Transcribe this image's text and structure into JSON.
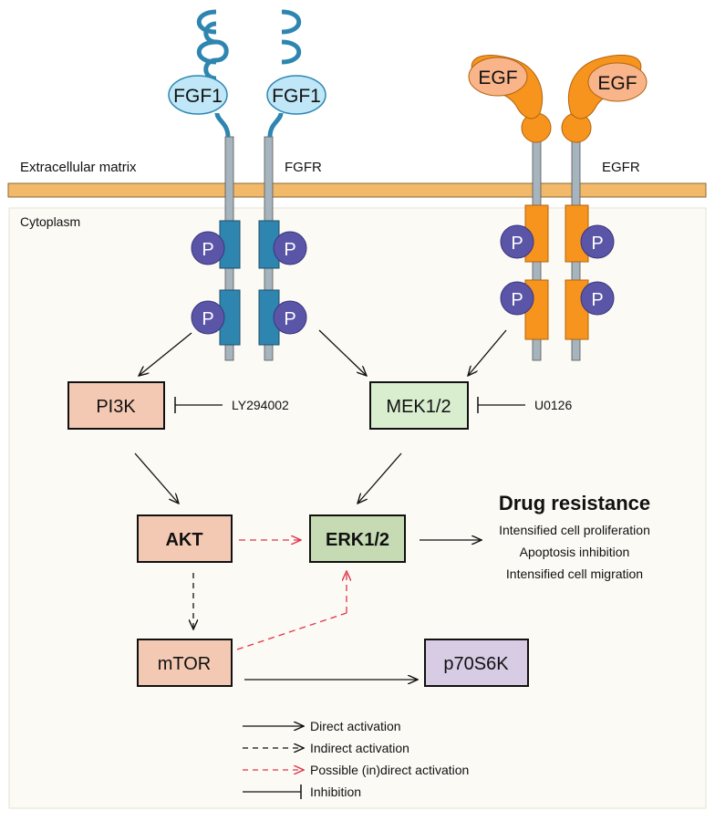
{
  "labels": {
    "extracellular": "Extracellular matrix",
    "cytoplasm": "Cytoplasm",
    "fgfr": "FGFR",
    "egfr": "EGFR",
    "fgf1_left": "FGF1",
    "fgf1_right": "FGF1",
    "egf_left": "EGF",
    "egf_right": "EGF",
    "phospho": "P"
  },
  "nodes": {
    "pi3k": "PI3K",
    "mek": "MEK1/2",
    "akt": "AKT",
    "erk": "ERK1/2",
    "mtor": "mTOR",
    "p70": "p70S6K"
  },
  "inhibitors": {
    "ly": "LY294002",
    "u0126": "U0126"
  },
  "outcome": {
    "title": "Drug resistance",
    "items": [
      "Intensified cell proliferation",
      "Apoptosis inhibition",
      "Intensified cell migration"
    ]
  },
  "legend": [
    "Direct activation",
    "Indirect activation",
    "Possible (in)direct activation",
    "Inhibition"
  ],
  "colors": {
    "membrane": "#f2b96a",
    "cytoplasm_bg": "#fcfaf4",
    "fgfr": "#2e86b0",
    "egfr": "#f7941d",
    "fgf1": "#bfe7f7",
    "phospho": "#5a55a6",
    "pi3k": "#f4c9b3",
    "mek": "#d9edcf",
    "akt": "#f4c9b3",
    "erk": "#c6dbb4",
    "mtor": "#f4c9b3",
    "p70": "#d8cbe4",
    "dashed_red": "#e0344a"
  }
}
